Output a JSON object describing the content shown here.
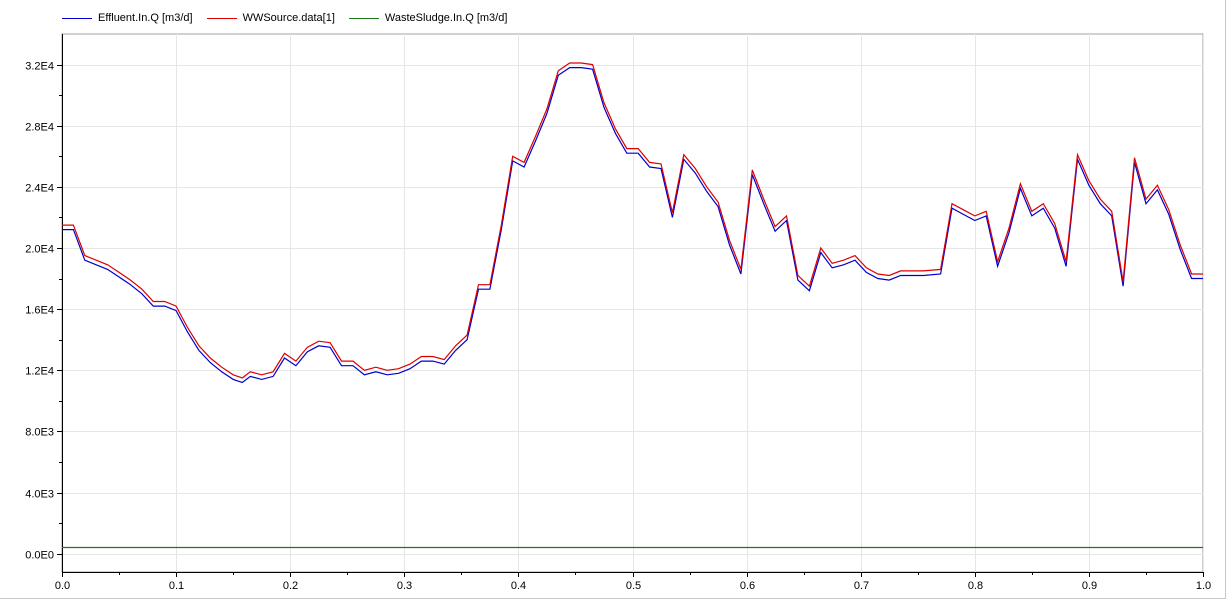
{
  "chart_data": {
    "type": "line",
    "title": "",
    "xlabel": "",
    "ylabel": "",
    "xlim": [
      0,
      1
    ],
    "ylim": [
      -1200,
      34000
    ],
    "grid": true,
    "legend_position": "top-left",
    "x_ticks": [
      0,
      0.1,
      0.2,
      0.3,
      0.4,
      0.5,
      0.6,
      0.7,
      0.8,
      0.9,
      1
    ],
    "x_tick_labels": [
      "0.0",
      "0.1",
      "0.2",
      "0.3",
      "0.4",
      "0.5",
      "0.6",
      "0.7",
      "0.8",
      "0.9",
      "1.0"
    ],
    "y_ticks": [
      0,
      4000,
      8000,
      12000,
      16000,
      20000,
      24000,
      28000,
      32000
    ],
    "y_tick_labels": [
      "0.0E0",
      "4.0E3",
      "8.0E3",
      "1.2E4",
      "1.6E4",
      "2.0E4",
      "2.4E4",
      "2.8E4",
      "3.2E4"
    ],
    "series": [
      {
        "name": "Effluent.In.Q [m3/d]",
        "color": "#0000cc",
        "x": [
          0,
          0.01,
          0.02,
          0.03,
          0.04,
          0.05,
          0.06,
          0.07,
          0.08,
          0.09,
          0.1,
          0.11,
          0.12,
          0.13,
          0.14,
          0.15,
          0.158,
          0.165,
          0.175,
          0.185,
          0.195,
          0.205,
          0.215,
          0.225,
          0.235,
          0.245,
          0.255,
          0.265,
          0.275,
          0.285,
          0.295,
          0.305,
          0.315,
          0.325,
          0.335,
          0.345,
          0.355,
          0.365,
          0.375,
          0.385,
          0.395,
          0.405,
          0.415,
          0.425,
          0.435,
          0.445,
          0.455,
          0.465,
          0.475,
          0.485,
          0.495,
          0.505,
          0.515,
          0.525,
          0.535,
          0.545,
          0.555,
          0.565,
          0.575,
          0.585,
          0.595,
          0.605,
          0.615,
          0.625,
          0.635,
          0.645,
          0.655,
          0.665,
          0.675,
          0.685,
          0.695,
          0.705,
          0.715,
          0.725,
          0.735,
          0.745,
          0.755,
          0.77,
          0.78,
          0.79,
          0.8,
          0.81,
          0.82,
          0.83,
          0.84,
          0.85,
          0.86,
          0.87,
          0.88,
          0.89,
          0.9,
          0.91,
          0.92,
          0.93,
          0.94,
          0.95,
          0.96,
          0.97,
          0.98,
          0.99,
          1.0
        ],
        "values": [
          21200,
          21200,
          19200,
          18900,
          18600,
          18100,
          17600,
          17000,
          16200,
          16200,
          15900,
          14500,
          13300,
          12500,
          11900,
          11400,
          11200,
          11600,
          11400,
          11600,
          12800,
          12300,
          13200,
          13600,
          13500,
          12300,
          12300,
          11700,
          11900,
          11700,
          11800,
          12100,
          12600,
          12600,
          12400,
          13300,
          14000,
          17300,
          17300,
          21200,
          25700,
          25300,
          27000,
          28800,
          31300,
          31800,
          31800,
          31700,
          29200,
          27500,
          26200,
          26200,
          25300,
          25200,
          22000,
          25800,
          24900,
          23700,
          22700,
          20200,
          18300,
          24800,
          22900,
          21100,
          21800,
          17900,
          17200,
          19700,
          18700,
          18900,
          19200,
          18400,
          18000,
          17900,
          18200,
          18200,
          18200,
          18300,
          22600,
          22200,
          21800,
          22100,
          18800,
          21000,
          23900,
          22100,
          22600,
          21300,
          18800,
          25800,
          24100,
          22900,
          22100,
          17500,
          25600,
          22900,
          23800,
          22200,
          19900,
          18000,
          18000
        ]
      },
      {
        "name": "WWSource.data[1]",
        "color": "#dd0000",
        "x": [
          0,
          0.01,
          0.02,
          0.03,
          0.04,
          0.05,
          0.06,
          0.07,
          0.08,
          0.09,
          0.1,
          0.11,
          0.12,
          0.13,
          0.14,
          0.15,
          0.158,
          0.165,
          0.175,
          0.185,
          0.195,
          0.205,
          0.215,
          0.225,
          0.235,
          0.245,
          0.255,
          0.265,
          0.275,
          0.285,
          0.295,
          0.305,
          0.315,
          0.325,
          0.335,
          0.345,
          0.355,
          0.365,
          0.375,
          0.385,
          0.395,
          0.405,
          0.415,
          0.425,
          0.435,
          0.445,
          0.455,
          0.465,
          0.475,
          0.485,
          0.495,
          0.505,
          0.515,
          0.525,
          0.535,
          0.545,
          0.555,
          0.565,
          0.575,
          0.585,
          0.595,
          0.605,
          0.615,
          0.625,
          0.635,
          0.645,
          0.655,
          0.665,
          0.675,
          0.685,
          0.695,
          0.705,
          0.715,
          0.725,
          0.735,
          0.745,
          0.755,
          0.77,
          0.78,
          0.79,
          0.8,
          0.81,
          0.82,
          0.83,
          0.84,
          0.85,
          0.86,
          0.87,
          0.88,
          0.89,
          0.9,
          0.91,
          0.92,
          0.93,
          0.94,
          0.95,
          0.96,
          0.97,
          0.98,
          0.99,
          1.0
        ],
        "values": [
          21500,
          21500,
          19500,
          19200,
          18900,
          18400,
          17900,
          17300,
          16500,
          16500,
          16200,
          14800,
          13600,
          12800,
          12200,
          11700,
          11500,
          11900,
          11700,
          11900,
          13100,
          12600,
          13500,
          13900,
          13800,
          12600,
          12600,
          12000,
          12200,
          12000,
          12100,
          12400,
          12900,
          12900,
          12700,
          13600,
          14300,
          17600,
          17600,
          21500,
          26000,
          25600,
          27300,
          29100,
          31600,
          32100,
          32100,
          32000,
          29500,
          27800,
          26500,
          26500,
          25600,
          25500,
          22300,
          26100,
          25200,
          24000,
          23000,
          20500,
          18600,
          25100,
          23200,
          21400,
          22100,
          18200,
          17500,
          20000,
          19000,
          19200,
          19500,
          18700,
          18300,
          18200,
          18500,
          18500,
          18500,
          18600,
          22900,
          22500,
          22100,
          22400,
          19100,
          21300,
          24200,
          22400,
          22900,
          21600,
          19100,
          26100,
          24400,
          23200,
          22400,
          17800,
          25900,
          23200,
          24100,
          22500,
          20200,
          18300,
          18300
        ]
      },
      {
        "name": "WasteSludge.In.Q [m3/d]",
        "color": "#1a7a1a",
        "x": [
          0,
          1
        ],
        "values": [
          400,
          400
        ]
      }
    ]
  }
}
